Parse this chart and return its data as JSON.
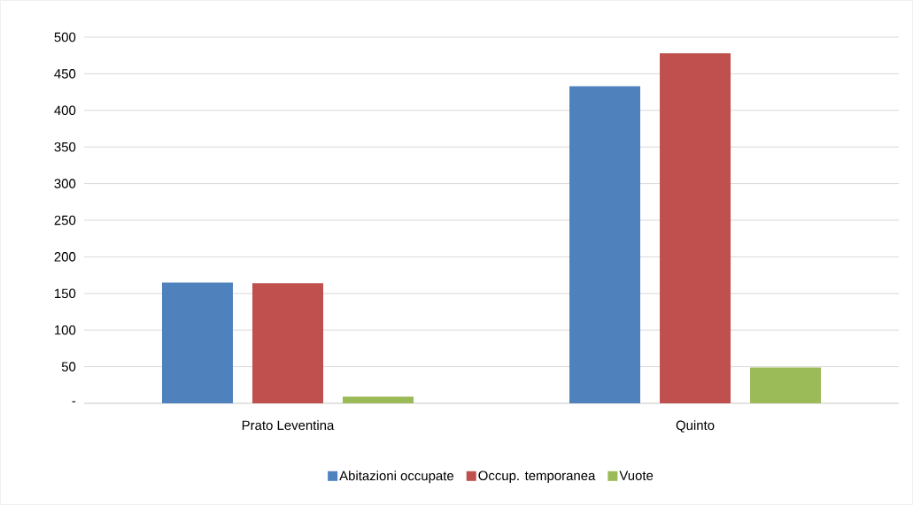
{
  "chart_data": {
    "type": "bar",
    "categories": [
      "Prato Leventina",
      "Quinto"
    ],
    "series": [
      {
        "name": "Abitazioni occupate",
        "color": "#4f81bd",
        "values": [
          165,
          433
        ]
      },
      {
        "name": "Occup. temporanea",
        "color": "#c0504d",
        "values": [
          164,
          478
        ]
      },
      {
        "name": "Vuote",
        "color": "#9bbb59",
        "values": [
          9,
          49
        ]
      }
    ],
    "ylim": [
      0,
      500
    ],
    "yticks": [
      {
        "value": 0,
        "label": "-"
      },
      50,
      100,
      150,
      200,
      250,
      300,
      350,
      400,
      450,
      500
    ],
    "grid": "y",
    "legend": "bottom"
  }
}
